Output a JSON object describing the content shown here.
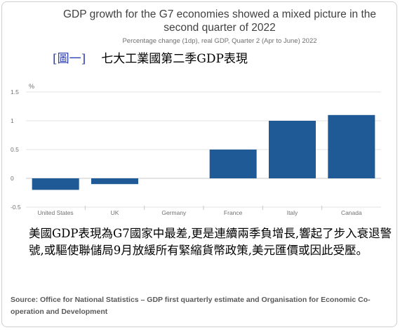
{
  "title": "GDP growth for the G7 economies showed a mixed picture in the second quarter of 2022",
  "subtitle": "Percentage change (1dp), real GDP, Quarter 2 (Apr to June) 2022",
  "caption": {
    "tag": "[圖一]",
    "text": "七大工業國第二季GDP表現"
  },
  "chart_data": {
    "type": "bar",
    "categories": [
      "United States",
      "UK",
      "Germany",
      "France",
      "Italy",
      "Canada"
    ],
    "values": [
      -0.2,
      -0.1,
      0.0,
      0.5,
      1.0,
      1.1
    ],
    "ylabel": "%",
    "ylim": [
      -0.5,
      1.5
    ],
    "yticks": [
      1.5,
      1,
      0.5,
      0,
      -0.5
    ],
    "grid": true,
    "bar_color": "#1f5a96"
  },
  "body_text": "美國GDP表現為G7國家中最差,更是連續兩季負增長,響起了步入衰退警號,或驅使聯儲局9月放緩所有緊縮貨幣政策,美元匯價或因此受壓。",
  "source": "Source: Office for National Statistics – GDP first quarterly estimate and Organisation for Economic Co-operation and Development"
}
